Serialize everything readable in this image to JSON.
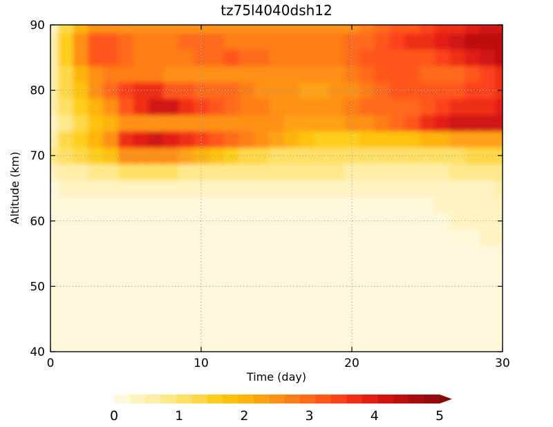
{
  "chart_data": {
    "type": "heatmap",
    "title": "tz75l4040dsh12",
    "xlabel": "Time (day)",
    "ylabel": "Altitude (km)",
    "xlim": [
      0,
      30
    ],
    "ylim": [
      40,
      90
    ],
    "x_ticks": [
      "0",
      "10",
      "20",
      "30"
    ],
    "y_ticks": [
      "40",
      "50",
      "60",
      "70",
      "80",
      "90"
    ],
    "grid": true,
    "colorbar": {
      "placement": "bottom",
      "labels": [
        "0",
        "1",
        "2",
        "3",
        "4",
        "5"
      ],
      "range": [
        0,
        5
      ],
      "extend": "max",
      "colors": [
        "#fff8dc",
        "#fff3c2",
        "#ffeeaa",
        "#ffe88c",
        "#ffe066",
        "#ffd84a",
        "#ffcd1f",
        "#ffc20a",
        "#ffb30d",
        "#ffa212",
        "#ff9016",
        "#ff7d19",
        "#ff6a1a",
        "#ff561a",
        "#fb421a",
        "#ef2e16",
        "#e21f14",
        "#d01512",
        "#bd0f10",
        "#a80c0e",
        "#950a0c",
        "#82080a"
      ]
    },
    "x": [
      0,
      1,
      2,
      3,
      4,
      5,
      6,
      7,
      8,
      9,
      10,
      11,
      12,
      13,
      14,
      15,
      16,
      17,
      18,
      19,
      20,
      21,
      22,
      23,
      24,
      25,
      26,
      27,
      28,
      29,
      30
    ],
    "y": [
      40,
      42.5,
      45,
      47.5,
      50,
      52.5,
      55,
      57.5,
      60,
      62.5,
      65,
      67.5,
      70,
      72.5,
      75,
      77.5,
      80,
      82.5,
      85,
      87.5,
      90
    ],
    "z": [
      [
        0.0,
        0.0,
        0.0,
        0.0,
        0.0,
        0.0,
        0.0,
        0.0,
        0.0,
        0.0,
        0.0,
        0.0,
        0.0,
        0.0,
        0.0,
        0.0,
        0.0,
        0.0,
        0.0,
        0.0,
        0.0,
        0.0,
        0.0,
        0.0,
        0.0,
        0.0,
        0.0,
        0.0,
        0.0,
        0.0,
        0.0
      ],
      [
        0.0,
        0.0,
        0.0,
        0.0,
        0.0,
        0.0,
        0.0,
        0.0,
        0.0,
        0.0,
        0.0,
        0.0,
        0.0,
        0.0,
        0.0,
        0.0,
        0.0,
        0.0,
        0.0,
        0.0,
        0.0,
        0.0,
        0.0,
        0.0,
        0.0,
        0.0,
        0.0,
        0.0,
        0.0,
        0.0,
        0.0
      ],
      [
        0.0,
        0.0,
        0.0,
        0.0,
        0.0,
        0.0,
        0.0,
        0.0,
        0.0,
        0.0,
        0.0,
        0.0,
        0.0,
        0.0,
        0.0,
        0.0,
        0.0,
        0.0,
        0.0,
        0.0,
        0.0,
        0.0,
        0.0,
        0.0,
        0.0,
        0.0,
        0.0,
        0.0,
        0.0,
        0.0,
        0.0
      ],
      [
        0.0,
        0.0,
        0.0,
        0.0,
        0.0,
        0.0,
        0.0,
        0.0,
        0.0,
        0.0,
        0.0,
        0.0,
        0.0,
        0.0,
        0.0,
        0.0,
        0.0,
        0.0,
        0.0,
        0.0,
        0.0,
        0.0,
        0.0,
        0.0,
        0.0,
        0.0,
        0.0,
        0.0,
        0.0,
        0.0,
        0.0
      ],
      [
        0.0,
        0.0,
        0.0,
        0.0,
        0.0,
        0.0,
        0.0,
        0.0,
        0.0,
        0.0,
        0.0,
        0.0,
        0.0,
        0.0,
        0.0,
        0.0,
        0.0,
        0.0,
        0.0,
        0.0,
        0.0,
        0.0,
        0.0,
        0.0,
        0.0,
        0.0,
        0.0,
        0.0,
        0.0,
        0.0,
        0.0
      ],
      [
        0.0,
        0.0,
        0.0,
        0.0,
        0.0,
        0.0,
        0.0,
        0.0,
        0.0,
        0.0,
        0.0,
        0.0,
        0.0,
        0.0,
        0.0,
        0.0,
        0.0,
        0.0,
        0.0,
        0.0,
        0.0,
        0.0,
        0.0,
        0.0,
        0.0,
        0.0,
        0.0,
        0.0,
        0.0,
        0.0,
        0.0
      ],
      [
        0.0,
        0.0,
        0.0,
        0.0,
        0.0,
        0.0,
        0.0,
        0.0,
        0.0,
        0.0,
        0.0,
        0.0,
        0.0,
        0.0,
        0.0,
        0.0,
        0.0,
        0.0,
        0.0,
        0.0,
        0.0,
        0.0,
        0.0,
        0.0,
        0.0,
        0.0,
        0.0,
        0.0,
        0.0,
        0.0,
        0.1
      ],
      [
        0.0,
        0.0,
        0.0,
        0.0,
        0.0,
        0.0,
        0.0,
        0.0,
        0.0,
        0.0,
        0.0,
        0.0,
        0.0,
        0.0,
        0.0,
        0.0,
        0.0,
        0.0,
        0.0,
        0.0,
        0.0,
        0.0,
        0.0,
        0.0,
        0.0,
        0.0,
        0.0,
        0.1,
        0.2,
        0.25,
        0.3
      ],
      [
        0.0,
        0.0,
        0.0,
        0.0,
        0.0,
        0.0,
        0.0,
        0.0,
        0.0,
        0.0,
        0.0,
        0.0,
        0.0,
        0.0,
        0.0,
        0.0,
        0.0,
        0.0,
        0.0,
        0.0,
        0.0,
        0.0,
        0.0,
        0.0,
        0.0,
        0.05,
        0.15,
        0.25,
        0.3,
        0.3,
        0.35
      ],
      [
        0.05,
        0.05,
        0.05,
        0.05,
        0.05,
        0.05,
        0.05,
        0.05,
        0.05,
        0.05,
        0.05,
        0.05,
        0.05,
        0.1,
        0.1,
        0.1,
        0.1,
        0.1,
        0.1,
        0.1,
        0.1,
        0.1,
        0.1,
        0.1,
        0.15,
        0.2,
        0.3,
        0.35,
        0.35,
        0.4,
        0.4
      ],
      [
        0.2,
        0.25,
        0.3,
        0.3,
        0.3,
        0.3,
        0.3,
        0.3,
        0.3,
        0.3,
        0.3,
        0.3,
        0.3,
        0.3,
        0.3,
        0.3,
        0.3,
        0.3,
        0.3,
        0.3,
        0.3,
        0.3,
        0.3,
        0.3,
        0.3,
        0.35,
        0.4,
        0.4,
        0.45,
        0.45,
        0.5
      ],
      [
        0.4,
        0.6,
        0.7,
        0.8,
        0.9,
        1.0,
        1.0,
        1.0,
        1.0,
        0.9,
        0.9,
        0.8,
        0.8,
        0.8,
        0.8,
        0.8,
        0.8,
        0.8,
        0.8,
        0.8,
        0.7,
        0.7,
        0.7,
        0.7,
        0.7,
        0.7,
        0.7,
        0.8,
        0.8,
        0.8,
        0.8
      ],
      [
        0.8,
        1.1,
        1.3,
        1.6,
        1.9,
        2.4,
        2.6,
        2.6,
        2.5,
        2.3,
        2.1,
        1.8,
        1.6,
        1.4,
        1.2,
        1.1,
        1.0,
        1.0,
        1.0,
        1.0,
        1.0,
        1.0,
        1.0,
        1.0,
        1.0,
        1.0,
        1.1,
        1.1,
        1.2,
        1.2,
        1.3
      ],
      [
        0.6,
        1.2,
        1.6,
        2.0,
        2.4,
        3.7,
        4.0,
        4.1,
        4.0,
        3.7,
        3.5,
        3.3,
        3.0,
        2.8,
        2.5,
        2.2,
        2.0,
        1.8,
        1.6,
        1.6,
        1.6,
        1.8,
        1.8,
        1.8,
        1.9,
        2.0,
        2.1,
        2.2,
        2.2,
        2.3,
        2.3
      ],
      [
        0.4,
        0.9,
        1.3,
        1.7,
        2.0,
        2.4,
        2.6,
        2.6,
        2.6,
        2.5,
        2.4,
        2.4,
        2.4,
        2.4,
        2.4,
        2.4,
        2.3,
        2.3,
        2.3,
        2.3,
        2.4,
        2.6,
        2.8,
        3.0,
        3.3,
        3.7,
        4.0,
        4.2,
        4.2,
        4.2,
        4.2
      ],
      [
        0.5,
        1.1,
        1.5,
        2.0,
        2.5,
        3.3,
        3.8,
        4.1,
        4.1,
        3.8,
        3.4,
        3.1,
        2.9,
        2.8,
        2.7,
        2.6,
        2.5,
        2.5,
        2.5,
        2.6,
        2.8,
        2.9,
        3.0,
        3.0,
        3.0,
        3.1,
        3.4,
        3.6,
        3.8,
        3.8,
        3.9
      ],
      [
        0.7,
        1.3,
        1.8,
        2.6,
        3.0,
        3.4,
        3.8,
        3.6,
        3.2,
        3.1,
        3.0,
        3.0,
        2.9,
        2.7,
        2.5,
        2.4,
        2.4,
        2.3,
        2.3,
        2.4,
        2.6,
        2.8,
        3.0,
        3.1,
        3.2,
        3.2,
        3.3,
        3.3,
        3.4,
        3.5,
        3.6
      ],
      [
        0.7,
        1.4,
        2.1,
        2.5,
        2.7,
        2.8,
        2.8,
        2.7,
        2.6,
        2.6,
        2.6,
        2.6,
        2.6,
        2.5,
        2.4,
        2.4,
        2.4,
        2.4,
        2.4,
        2.5,
        2.7,
        2.9,
        3.2,
        3.2,
        3.1,
        3.0,
        2.9,
        3.0,
        3.3,
        3.5,
        3.7
      ],
      [
        0.6,
        1.6,
        2.6,
        3.2,
        3.1,
        2.9,
        2.8,
        2.7,
        2.7,
        2.8,
        2.9,
        3.0,
        3.1,
        3.0,
        2.9,
        2.8,
        2.8,
        2.7,
        2.7,
        2.7,
        2.9,
        3.1,
        3.2,
        3.3,
        3.3,
        3.3,
        3.5,
        3.7,
        4.0,
        4.2,
        4.4
      ],
      [
        0.5,
        1.5,
        2.5,
        3.1,
        3.1,
        2.9,
        2.7,
        2.7,
        2.8,
        2.9,
        2.9,
        2.9,
        2.8,
        2.8,
        2.8,
        2.7,
        2.7,
        2.7,
        2.7,
        2.8,
        2.9,
        3.0,
        3.2,
        3.4,
        3.6,
        3.8,
        4.0,
        4.2,
        4.3,
        4.4,
        4.5
      ],
      [
        0.4,
        1.2,
        2.0,
        2.5,
        2.5,
        2.5,
        2.4,
        2.4,
        2.4,
        2.5,
        2.5,
        2.5,
        2.4,
        2.4,
        2.4,
        2.4,
        2.4,
        2.4,
        2.4,
        2.5,
        2.6,
        2.7,
        2.9,
        3.1,
        3.3,
        3.5,
        3.6,
        3.8,
        4.0,
        4.1,
        4.2
      ]
    ]
  }
}
